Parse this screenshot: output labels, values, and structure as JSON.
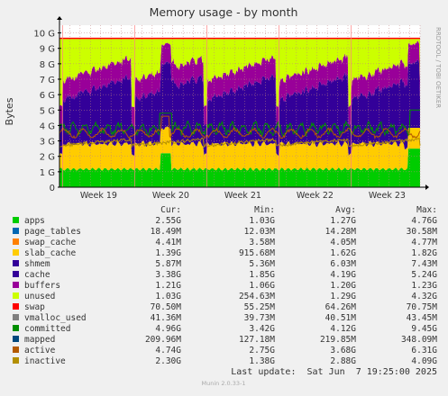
{
  "chart_data": {
    "type": "area",
    "title": "Memory usage - by month",
    "ylabel": "Bytes",
    "ylim": [
      0,
      10.5
    ],
    "yticks": [
      "0",
      "1 G",
      "2 G",
      "3 G",
      "4 G",
      "5 G",
      "6 G",
      "7 G",
      "8 G",
      "9 G",
      "10 G"
    ],
    "xticks": [
      "Week 19",
      "Week 20",
      "Week 21",
      "Week 22",
      "Week 23"
    ],
    "grid": true,
    "legend_position": "bottom",
    "watermark": "RRDTOOL / TOBI OETIKER",
    "columns": {
      "cur": "Cur:",
      "min": "Min:",
      "avg": "Avg:",
      "max": "Max:"
    },
    "series": [
      {
        "name": "apps",
        "color": "#00cc00",
        "cur": "2.55G",
        "min": "1.03G",
        "avg": "1.27G",
        "max": "4.76G"
      },
      {
        "name": "page_tables",
        "color": "#0066b3",
        "cur": "18.49M",
        "min": "12.03M",
        "avg": "14.28M",
        "max": "30.58M"
      },
      {
        "name": "swap_cache",
        "color": "#ff8000",
        "cur": "4.41M",
        "min": "3.58M",
        "avg": "4.05M",
        "max": "4.77M"
      },
      {
        "name": "slab_cache",
        "color": "#ffcc00",
        "cur": "1.39G",
        "min": "915.68M",
        "avg": "1.62G",
        "max": "1.82G"
      },
      {
        "name": "shmem",
        "color": "#330099",
        "cur": "5.87M",
        "min": "5.36M",
        "avg": "6.03M",
        "max": "7.43M"
      },
      {
        "name": "cache",
        "color": "#330099",
        "cur": "3.38G",
        "min": "1.85G",
        "avg": "4.19G",
        "max": "5.24G"
      },
      {
        "name": "buffers",
        "color": "#990099",
        "cur": "1.21G",
        "min": "1.06G",
        "avg": "1.20G",
        "max": "1.23G"
      },
      {
        "name": "unused",
        "color": "#ccff00",
        "cur": "1.03G",
        "min": "254.63M",
        "avg": "1.29G",
        "max": "4.32G"
      },
      {
        "name": "swap",
        "color": "#ff0000",
        "cur": "70.50M",
        "min": "55.25M",
        "avg": "64.26M",
        "max": "70.75M"
      },
      {
        "name": "vmalloc_used",
        "color": "#808080",
        "cur": "41.36M",
        "min": "39.73M",
        "avg": "40.51M",
        "max": "43.45M"
      },
      {
        "name": "committed",
        "color": "#008f00",
        "cur": "4.96G",
        "min": "3.42G",
        "avg": "4.12G",
        "max": "9.45G"
      },
      {
        "name": "mapped",
        "color": "#00487d",
        "cur": "209.96M",
        "min": "127.18M",
        "avg": "219.85M",
        "max": "348.09M"
      },
      {
        "name": "active",
        "color": "#b35a00",
        "cur": "4.74G",
        "min": "2.75G",
        "avg": "3.68G",
        "max": "6.31G"
      },
      {
        "name": "inactive",
        "color": "#b38f00",
        "cur": "2.30G",
        "min": "1.38G",
        "avg": "2.88G",
        "max": "4.09G"
      }
    ],
    "last_update": "Last update:  Sat Jun  7 19:25:00 2025",
    "footer": "Munin 2.0.33-1"
  }
}
